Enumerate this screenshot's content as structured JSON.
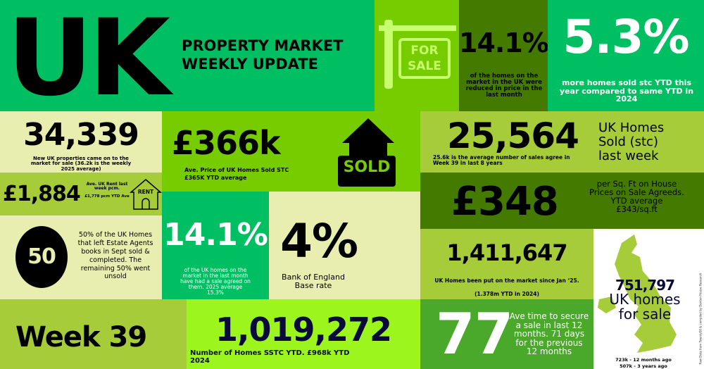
{
  "colors": {
    "green": "#00bf63",
    "lime": "#77cc00",
    "dark": "#447a00",
    "olive": "#a6cc3a",
    "cream": "#e8eeb0",
    "neon": "#9cf51c",
    "mid": "#4aa82a"
  },
  "header": {
    "uk": "UK",
    "title_line1": "PROPERTY MARKET",
    "title_line2": "WEEKLY UPDATE"
  },
  "for_sale_sign": {
    "icon": "for-sale-sign-icon",
    "text1": "FOR",
    "text2": "SALE"
  },
  "reduced": {
    "value": "14.1%",
    "desc": "of the homes on the market in the UK were reduced in price in the last month"
  },
  "sold_more": {
    "value": "5.3%",
    "desc": "more homes sold stc YTD this year compared to same YTD in 2024"
  },
  "new_listings": {
    "value": "34,339",
    "desc": "New UK properties came on to the market for sale (36.2k is the weekly 2025 average)"
  },
  "avg_price": {
    "value": "£366k",
    "desc1": "Ave. Price of UK Homes Sold STC",
    "desc2": "£365K YTD average",
    "icon": "sold-house-icon",
    "sold": "SOLD"
  },
  "sold_week": {
    "value": "25,564",
    "desc": "25.6k is the average number of sales agree in Week 39 in last 8 years",
    "label": "UK Homes Sold (stc) last week"
  },
  "rent": {
    "value": "£1,884",
    "desc1": "Ave. UK Rent last week pcm.",
    "desc2": "£1,778 pcm YTD Ave",
    "icon": "rent-house-icon",
    "rent": "RENT"
  },
  "sqft": {
    "value": "£348",
    "desc": "per Sq. Ft on House Prices on Sale Agreeds. YTD average £343/sq.ft"
  },
  "completed": {
    "value": "50",
    "desc": "50% of the UK Homes that left Estate Agents books in Sept sold & completed. The remaining 50% went unsold"
  },
  "sale_agreed": {
    "value": "14.1%",
    "desc": "of the UK homes on the market in the last month have had a sale agreed on them. 2025 average 15.3%"
  },
  "base_rate": {
    "value": "4%",
    "desc": "Bank of England Base rate"
  },
  "on_market": {
    "value": "1,411,647",
    "desc1": "UK Homes been put on the market since Jan ‘25.",
    "desc2": "(1.378m YTD in 2024)"
  },
  "week": {
    "label": "Week 39"
  },
  "sstc": {
    "value": "1,019,272",
    "desc": "Number of Homes SSTC YTD. £968k YTD 2024"
  },
  "time_to_sell": {
    "value": "77",
    "desc": "Ave time to secure a sale  in last 12 months. 71 days for the previous 12 months"
  },
  "for_sale": {
    "value": "751,797",
    "label": "UK homes for sale",
    "ago1": "723k - 12 months ago",
    "ago2": "507k - 3 years ago",
    "source": "Raw Data from TwentyEA & compiled by Denton House Research",
    "icon": "uk-map-icon"
  }
}
